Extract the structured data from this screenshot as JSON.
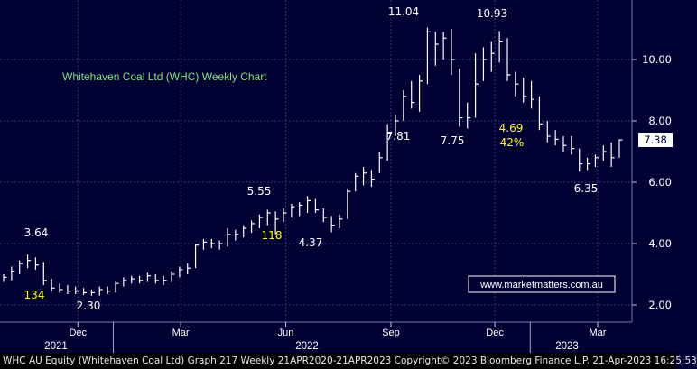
{
  "footer": {
    "text": "WHC AU Equity (Whitehaven Coal Ltd) Graph 217  Weekly 21APR2020-21APR2023  Copyright© 2023 Bloomberg Finance L.P.  21-Apr-2023  16:25:53"
  },
  "chart_data": {
    "type": "ohlc",
    "title": "Whitehaven Coal Ltd (WHC) Weekly Chart",
    "watermark": "www.marketmatters.com.au",
    "colors": {
      "background": "#000033",
      "bars": "#ffffff",
      "grid": "#2b3b8a",
      "title": "#7ce87c",
      "highlight": "#ffff00",
      "watermark_border": "#ffffff"
    },
    "grid": true,
    "y_axis": {
      "side": "right",
      "min": 1.6,
      "max": 11.8,
      "ticks": [
        2.0,
        4.0,
        6.0,
        8.0,
        10.0
      ],
      "tick_labels": [
        "2.00",
        "4.00",
        "6.00",
        "8.00",
        "10.00"
      ]
    },
    "x_axis": {
      "months": [
        "Dec",
        "Mar",
        "Jun",
        "Sep",
        "Dec",
        "Mar"
      ],
      "years": [
        "2021",
        "2022",
        "2023"
      ]
    },
    "last_price": {
      "value": 7.38,
      "label": "7.38"
    },
    "series": [
      {
        "date": "2021-09-27",
        "high": 3.0,
        "low": 2.75,
        "close": 2.9
      },
      {
        "date": "2021-10-04",
        "high": 3.25,
        "low": 2.8,
        "close": 3.1
      },
      {
        "date": "2021-10-11",
        "high": 3.45,
        "low": 3.0,
        "close": 3.35
      },
      {
        "date": "2021-10-18",
        "high": 3.64,
        "low": 3.2,
        "close": 3.45
      },
      {
        "date": "2021-10-25",
        "high": 3.55,
        "low": 3.15,
        "close": 3.3
      },
      {
        "date": "2021-11-01",
        "high": 3.4,
        "low": 2.65,
        "close": 2.8
      },
      {
        "date": "2021-11-08",
        "high": 2.85,
        "low": 2.45,
        "close": 2.55
      },
      {
        "date": "2021-11-15",
        "high": 2.7,
        "low": 2.4,
        "close": 2.5
      },
      {
        "date": "2021-11-22",
        "high": 2.65,
        "low": 2.35,
        "close": 2.45
      },
      {
        "date": "2021-11-29",
        "high": 2.6,
        "low": 2.35,
        "close": 2.45
      },
      {
        "date": "2021-12-06",
        "high": 2.55,
        "low": 2.32,
        "close": 2.4
      },
      {
        "date": "2021-12-13",
        "high": 2.5,
        "low": 2.3,
        "close": 2.4
      },
      {
        "date": "2021-12-20",
        "high": 2.6,
        "low": 2.3,
        "close": 2.5
      },
      {
        "date": "2021-12-27",
        "high": 2.6,
        "low": 2.35,
        "close": 2.45
      },
      {
        "date": "2022-01-03",
        "high": 2.75,
        "low": 2.4,
        "close": 2.7
      },
      {
        "date": "2022-01-10",
        "high": 2.9,
        "low": 2.6,
        "close": 2.8
      },
      {
        "date": "2022-01-17",
        "high": 2.95,
        "low": 2.7,
        "close": 2.85
      },
      {
        "date": "2022-01-24",
        "high": 2.95,
        "low": 2.7,
        "close": 2.8
      },
      {
        "date": "2022-01-31",
        "high": 3.05,
        "low": 2.75,
        "close": 2.95
      },
      {
        "date": "2022-02-07",
        "high": 3.0,
        "low": 2.7,
        "close": 2.8
      },
      {
        "date": "2022-02-14",
        "high": 2.95,
        "low": 2.65,
        "close": 2.8
      },
      {
        "date": "2022-02-21",
        "high": 3.1,
        "low": 2.75,
        "close": 3.0
      },
      {
        "date": "2022-02-28",
        "high": 3.25,
        "low": 2.9,
        "close": 3.15
      },
      {
        "date": "2022-03-07",
        "high": 3.35,
        "low": 3.0,
        "close": 3.2
      },
      {
        "date": "2022-03-14",
        "high": 4.0,
        "low": 3.2,
        "close": 3.95
      },
      {
        "date": "2022-03-21",
        "high": 4.15,
        "low": 3.8,
        "close": 4.05
      },
      {
        "date": "2022-03-28",
        "high": 4.15,
        "low": 3.85,
        "close": 4.0
      },
      {
        "date": "2022-04-04",
        "high": 4.1,
        "low": 3.8,
        "close": 4.0
      },
      {
        "date": "2022-04-11",
        "high": 4.5,
        "low": 3.9,
        "close": 4.3
      },
      {
        "date": "2022-04-18",
        "high": 4.45,
        "low": 4.1,
        "close": 4.3
      },
      {
        "date": "2022-04-25",
        "high": 4.6,
        "low": 4.2,
        "close": 4.5
      },
      {
        "date": "2022-05-02",
        "high": 4.75,
        "low": 4.35,
        "close": 4.65
      },
      {
        "date": "2022-05-09",
        "high": 4.95,
        "low": 4.5,
        "close": 4.85
      },
      {
        "date": "2022-05-16",
        "high": 5.1,
        "low": 4.6,
        "close": 5.0
      },
      {
        "date": "2022-05-23",
        "high": 5.05,
        "low": 4.3,
        "close": 4.8
      },
      {
        "date": "2022-05-30",
        "high": 5.15,
        "low": 4.7,
        "close": 5.0
      },
      {
        "date": "2022-06-06",
        "high": 5.3,
        "low": 4.85,
        "close": 5.2
      },
      {
        "date": "2022-06-13",
        "high": 5.35,
        "low": 4.9,
        "close": 5.25
      },
      {
        "date": "2022-06-20",
        "high": 5.55,
        "low": 5.0,
        "close": 5.4
      },
      {
        "date": "2022-06-27",
        "high": 5.45,
        "low": 5.0,
        "close": 5.1
      },
      {
        "date": "2022-07-04",
        "high": 5.15,
        "low": 4.7,
        "close": 4.85
      },
      {
        "date": "2022-07-11",
        "high": 4.9,
        "low": 4.37,
        "close": 4.6
      },
      {
        "date": "2022-07-18",
        "high": 4.95,
        "low": 4.5,
        "close": 4.8
      },
      {
        "date": "2022-07-25",
        "high": 5.8,
        "low": 4.8,
        "close": 5.7
      },
      {
        "date": "2022-08-01",
        "high": 6.3,
        "low": 5.7,
        "close": 6.2
      },
      {
        "date": "2022-08-08",
        "high": 6.5,
        "low": 5.9,
        "close": 6.3
      },
      {
        "date": "2022-08-15",
        "high": 6.4,
        "low": 5.85,
        "close": 6.1
      },
      {
        "date": "2022-08-22",
        "high": 7.0,
        "low": 6.3,
        "close": 6.8
      },
      {
        "date": "2022-08-29",
        "high": 7.9,
        "low": 6.7,
        "close": 7.6
      },
      {
        "date": "2022-09-05",
        "high": 8.2,
        "low": 7.5,
        "close": 8.0
      },
      {
        "date": "2022-09-12",
        "high": 9.0,
        "low": 8.0,
        "close": 8.8
      },
      {
        "date": "2022-09-19",
        "high": 9.3,
        "low": 8.4,
        "close": 8.6
      },
      {
        "date": "2022-09-26",
        "high": 9.5,
        "low": 8.3,
        "close": 9.3
      },
      {
        "date": "2022-10-03",
        "high": 11.04,
        "low": 9.2,
        "close": 10.9
      },
      {
        "date": "2022-10-10",
        "high": 10.9,
        "low": 9.8,
        "close": 10.5
      },
      {
        "date": "2022-10-17",
        "high": 10.9,
        "low": 10.0,
        "close": 10.7
      },
      {
        "date": "2022-10-24",
        "high": 11.0,
        "low": 9.5,
        "close": 10.0
      },
      {
        "date": "2022-10-31",
        "high": 9.7,
        "low": 7.81,
        "close": 8.1
      },
      {
        "date": "2022-11-07",
        "high": 8.6,
        "low": 7.75,
        "close": 8.1
      },
      {
        "date": "2022-11-14",
        "high": 10.2,
        "low": 8.1,
        "close": 9.2
      },
      {
        "date": "2022-11-21",
        "high": 10.4,
        "low": 9.3,
        "close": 10.0
      },
      {
        "date": "2022-11-28",
        "high": 10.6,
        "low": 9.6,
        "close": 10.2
      },
      {
        "date": "2022-12-05",
        "high": 10.93,
        "low": 9.9,
        "close": 10.6
      },
      {
        "date": "2022-12-12",
        "high": 10.7,
        "low": 9.3,
        "close": 9.5
      },
      {
        "date": "2022-12-19",
        "high": 9.6,
        "low": 8.8,
        "close": 9.2
      },
      {
        "date": "2022-12-26",
        "high": 9.4,
        "low": 8.6,
        "close": 8.8
      },
      {
        "date": "2023-01-02",
        "high": 9.3,
        "low": 8.4,
        "close": 8.7
      },
      {
        "date": "2023-01-09",
        "high": 8.8,
        "low": 7.7,
        "close": 7.9
      },
      {
        "date": "2023-01-16",
        "high": 8.0,
        "low": 7.3,
        "close": 7.5
      },
      {
        "date": "2023-01-23",
        "high": 7.7,
        "low": 7.2,
        "close": 7.4
      },
      {
        "date": "2023-01-30",
        "high": 7.5,
        "low": 7.0,
        "close": 7.2
      },
      {
        "date": "2023-02-06",
        "high": 7.5,
        "low": 6.9,
        "close": 7.1
      },
      {
        "date": "2023-02-13",
        "high": 7.1,
        "low": 6.35,
        "close": 6.6
      },
      {
        "date": "2023-02-20",
        "high": 6.8,
        "low": 6.4,
        "close": 6.6
      },
      {
        "date": "2023-02-27",
        "high": 6.9,
        "low": 6.5,
        "close": 6.8
      },
      {
        "date": "2023-03-06",
        "high": 7.2,
        "low": 6.7,
        "close": 7.0
      },
      {
        "date": "2023-03-13",
        "high": 7.3,
        "low": 6.5,
        "close": 6.8
      },
      {
        "date": "2023-03-20",
        "high": 7.4,
        "low": 6.8,
        "close": 7.38
      }
    ],
    "annotations": [
      {
        "text": "3.64",
        "color": "#ffffff"
      },
      {
        "text": "134",
        "color": "#ffff00"
      },
      {
        "text": "2.30",
        "color": "#ffffff"
      },
      {
        "text": "5.55",
        "color": "#ffffff"
      },
      {
        "text": "118",
        "color": "#ffff00"
      },
      {
        "text": "4.37",
        "color": "#ffffff"
      },
      {
        "text": "11.04",
        "color": "#ffffff"
      },
      {
        "text": "7.81",
        "color": "#ffffff"
      },
      {
        "text": "7.75",
        "color": "#ffffff"
      },
      {
        "text": "10.93",
        "color": "#ffffff"
      },
      {
        "text": "4.69",
        "color": "#ffff00"
      },
      {
        "text": "42%",
        "color": "#ffff00"
      },
      {
        "text": "6.35",
        "color": "#ffffff"
      }
    ]
  }
}
